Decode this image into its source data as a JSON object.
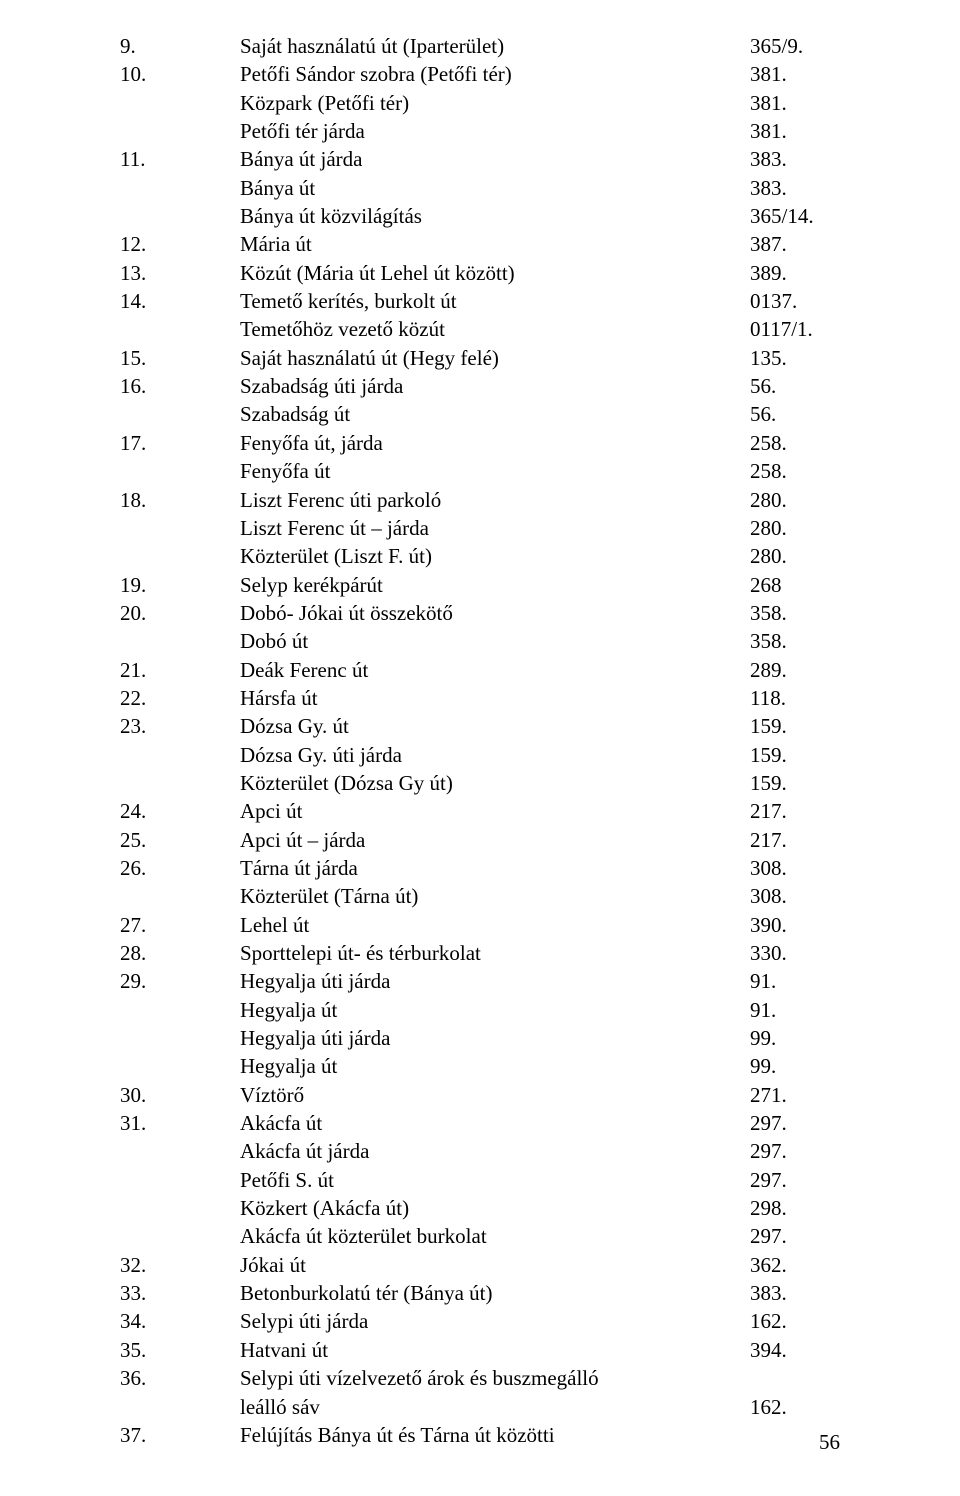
{
  "page_number": "56",
  "rows": [
    {
      "num": "9.",
      "text": "Saját használatú út  (Iparterület)",
      "value": "365/9."
    },
    {
      "num": "10.",
      "text": "Petőfi Sándor szobra (Petőfi tér)",
      "value": "381."
    },
    {
      "num": "",
      "text": "Közpark (Petőfi tér)",
      "value": "381."
    },
    {
      "num": "",
      "text": "Petőfi tér járda",
      "value": "381."
    },
    {
      "num": "11.",
      "text": "Bánya út járda",
      "value": "383."
    },
    {
      "num": "",
      "text": "Bánya út",
      "value": "383."
    },
    {
      "num": "",
      "text": "Bánya út közvilágítás",
      "value": "365/14."
    },
    {
      "num": "12.",
      "text": "Mária út",
      "value": "387."
    },
    {
      "num": "13.",
      "text": "Közút  (Mária út Lehel út között)",
      "value": "389."
    },
    {
      "num": "14.",
      "text": "Temető kerítés, burkolt út",
      "value": "0137."
    },
    {
      "num": "",
      "text": "Temetőhöz vezető közút",
      "value": "0117/1."
    },
    {
      "num": "15.",
      "text": "Saját használatú út  (Hegy felé)",
      "value": "135."
    },
    {
      "num": "16.",
      "text": "Szabadság úti járda",
      "value": "56."
    },
    {
      "num": "",
      "text": "Szabadság út",
      "value": "56."
    },
    {
      "num": "17.",
      "text": "Fenyőfa út, járda",
      "value": "258."
    },
    {
      "num": "",
      "text": "Fenyőfa út",
      "value": "258."
    },
    {
      "num": "18.",
      "text": "Liszt Ferenc úti parkoló",
      "value": "280."
    },
    {
      "num": "",
      "text": "Liszt Ferenc út – járda",
      "value": "280."
    },
    {
      "num": "",
      "text": "Közterület (Liszt F. út)",
      "value": "280."
    },
    {
      "num": "19.",
      "text": "Selyp kerékpárút",
      "value": "268"
    },
    {
      "num": "20.",
      "text": "Dobó- Jókai út összekötő",
      "value": "358."
    },
    {
      "num": "",
      "text": "Dobó út",
      "value": "358."
    },
    {
      "num": "21.",
      "text": "Deák Ferenc út",
      "value": "289."
    },
    {
      "num": "22.",
      "text": "Hársfa út",
      "value": "118."
    },
    {
      "num": "23.",
      "text": "Dózsa Gy. út",
      "value": "159."
    },
    {
      "num": "",
      "text": "Dózsa Gy. úti járda",
      "value": "159."
    },
    {
      "num": "",
      "text": "Közterület (Dózsa Gy út)",
      "value": "159."
    },
    {
      "num": "24.",
      "text": "Apci út",
      "value": "217."
    },
    {
      "num": "25.",
      "text": "Apci út – járda",
      "value": "217."
    },
    {
      "num": "26.",
      "text": "Tárna út járda",
      "value": "308."
    },
    {
      "num": "",
      "text": "Közterület (Tárna út)",
      "value": "308."
    },
    {
      "num": "27.",
      "text": "Lehel út",
      "value": "390."
    },
    {
      "num": "28.",
      "text": "Sporttelepi út- és térburkolat",
      "value": "330."
    },
    {
      "num": "29.",
      "text": "Hegyalja úti járda",
      "value": "91."
    },
    {
      "num": "",
      "text": "Hegyalja út",
      "value": "91."
    },
    {
      "num": "",
      "text": "Hegyalja úti járda",
      "value": "99."
    },
    {
      "num": "",
      "text": "Hegyalja út",
      "value": "99."
    },
    {
      "num": "30.",
      "text": "Víztörő",
      "value": "271."
    },
    {
      "num": "31.",
      "text": "Akácfa út",
      "value": "297."
    },
    {
      "num": "",
      "text": "Akácfa út járda",
      "value": "297."
    },
    {
      "num": "",
      "text": "Petőfi S. út",
      "value": "297."
    },
    {
      "num": "",
      "text": "Közkert (Akácfa út)",
      "value": "298."
    },
    {
      "num": "",
      "text": "Akácfa út közterület burkolat",
      "value": "297."
    },
    {
      "num": "32.",
      "text": "Jókai út",
      "value": "362."
    },
    {
      "num": "33.",
      "text": "Betonburkolatú tér (Bánya út)",
      "value": "383."
    },
    {
      "num": "34.",
      "text": "Selypi úti járda",
      "value": "162."
    },
    {
      "num": "35.",
      "text": "Hatvani út",
      "value": "394."
    },
    {
      "num": "36.",
      "text": "Selypi úti vízelvezető árok és buszmegálló",
      "value": ""
    },
    {
      "num": "",
      "text": "leálló sáv",
      "value": "162."
    },
    {
      "num": "37.",
      "text": "Felújítás Bánya út és Tárna út közötti",
      "value": ""
    }
  ]
}
